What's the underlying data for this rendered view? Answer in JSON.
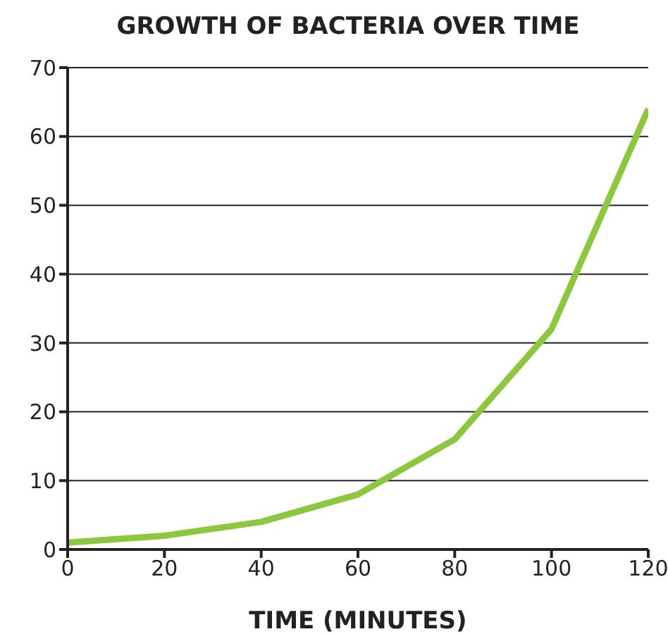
{
  "chart_data": {
    "type": "line",
    "title": "GROWTH OF BACTERIA OVER TIME",
    "xlabel": "TIME (MINUTES)",
    "x": [
      0,
      20,
      40,
      60,
      80,
      100,
      120
    ],
    "series": [
      {
        "color": "#8dc63f",
        "values": [
          1,
          2,
          4,
          8,
          16,
          32,
          64
        ]
      }
    ],
    "xlim": [
      0,
      120
    ],
    "xticks": [
      0,
      20,
      40,
      60,
      80,
      100,
      120
    ],
    "ylim": [
      0,
      70
    ],
    "yticks": [
      0,
      10,
      20,
      30,
      40,
      50,
      60,
      70
    ],
    "grid": "y",
    "legend": false,
    "marker": "none",
    "line_style": "solid"
  }
}
